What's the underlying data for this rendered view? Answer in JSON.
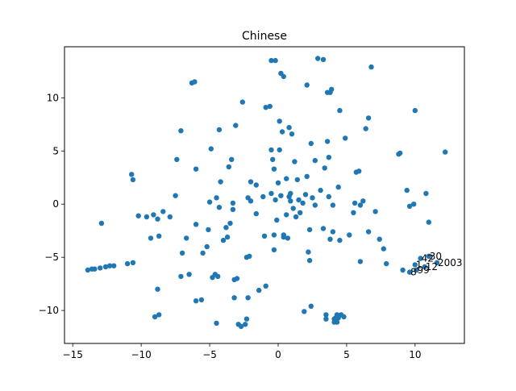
{
  "chart_data": {
    "type": "scatter",
    "title": "Chinese",
    "xlabel": "",
    "ylabel": "",
    "xlim": [
      -15.6,
      13.6
    ],
    "ylim": [
      -13.1,
      14.8
    ],
    "xticks": [
      -15,
      -10,
      -5,
      0,
      5,
      10
    ],
    "yticks": [
      -10,
      -5,
      0,
      5,
      10
    ],
    "xtick_labels": [
      "−15",
      "−10",
      "−5",
      "0",
      "5",
      "10"
    ],
    "ytick_labels": [
      "−10",
      "−5",
      "0",
      "5",
      "10"
    ],
    "grid": false,
    "point_color": "#1f77b4",
    "labelled_points": [
      {
        "x": 11.0,
        "y": -4.9,
        "label": "30"
      },
      {
        "x": 10.4,
        "y": -5.1,
        "label": "42"
      },
      {
        "x": 11.6,
        "y": -5.5,
        "label": "2003"
      },
      {
        "x": 10.0,
        "y": -5.7,
        "label": "1"
      },
      {
        "x": 10.7,
        "y": -5.9,
        "label": "12"
      },
      {
        "x": 10.1,
        "y": -6.2,
        "label": "99"
      },
      {
        "x": 9.6,
        "y": -6.4,
        "label": "8"
      }
    ],
    "points": [
      [
        -13.9,
        -6.2
      ],
      [
        -13.4,
        -6.1
      ],
      [
        -13.0,
        -6.0
      ],
      [
        -12.6,
        -5.9
      ],
      [
        -12.3,
        -5.8
      ],
      [
        -11.0,
        -5.6
      ],
      [
        -10.6,
        -5.5
      ],
      [
        -12.9,
        -1.8
      ],
      [
        -10.6,
        2.3
      ],
      [
        -10.7,
        2.8
      ],
      [
        -9.6,
        -1.2
      ],
      [
        -9.1,
        -1.0
      ],
      [
        -8.8,
        -1.4
      ],
      [
        -8.4,
        -0.7
      ],
      [
        -9.3,
        -3.2
      ],
      [
        -8.7,
        -3.0
      ],
      [
        -8.8,
        -8.0
      ],
      [
        -9.0,
        -10.6
      ],
      [
        -8.7,
        -10.4
      ],
      [
        -7.5,
        0.8
      ],
      [
        -7.4,
        4.2
      ],
      [
        -7.1,
        6.9
      ],
      [
        -7.0,
        -4.6
      ],
      [
        -7.1,
        -6.8
      ],
      [
        -6.7,
        -3.2
      ],
      [
        -6.5,
        -6.6
      ],
      [
        -6.3,
        11.4
      ],
      [
        -6.1,
        11.5
      ],
      [
        -6.0,
        3.3
      ],
      [
        -6.0,
        -1.9
      ],
      [
        -6.0,
        -9.1
      ],
      [
        -5.6,
        -9.0
      ],
      [
        -5.5,
        -4.6
      ],
      [
        -5.2,
        -4.0
      ],
      [
        -5.1,
        -2.4
      ],
      [
        -5.0,
        0.2
      ],
      [
        -4.9,
        5.2
      ],
      [
        -4.8,
        -6.9
      ],
      [
        -4.6,
        -6.6
      ],
      [
        -4.3,
        -0.3
      ],
      [
        -4.5,
        0.6
      ],
      [
        -4.4,
        -6.8
      ],
      [
        -4.5,
        -11.2
      ],
      [
        -4.3,
        7.0
      ],
      [
        -4.2,
        2.1
      ],
      [
        -4.0,
        -3.4
      ],
      [
        -3.8,
        -2.2
      ],
      [
        -3.7,
        -3.1
      ],
      [
        -3.5,
        -1.8
      ],
      [
        -3.3,
        -0.5
      ],
      [
        -3.6,
        3.5
      ],
      [
        -3.4,
        4.2
      ],
      [
        -3.3,
        0.1
      ],
      [
        -3.2,
        -7.1
      ],
      [
        -3.0,
        -7.0
      ],
      [
        -3.2,
        -8.8
      ],
      [
        -3.1,
        7.4
      ],
      [
        -2.9,
        -11.3
      ],
      [
        -2.7,
        -11.5
      ],
      [
        -2.6,
        9.6
      ],
      [
        -2.4,
        -11.3
      ],
      [
        -2.3,
        -10.8
      ],
      [
        -2.3,
        -5.0
      ],
      [
        -2.1,
        -4.9
      ],
      [
        -2.2,
        -8.8
      ],
      [
        -2.2,
        0.6
      ],
      [
        -2.0,
        0.3
      ],
      [
        -1.6,
        1.8
      ],
      [
        -1.6,
        -0.9
      ],
      [
        -1.4,
        -8.1
      ],
      [
        -1.1,
        0.7
      ],
      [
        -1.0,
        -3.0
      ],
      [
        -0.9,
        -7.7
      ],
      [
        -0.9,
        9.1
      ],
      [
        -0.6,
        9.2
      ],
      [
        -0.5,
        5.1
      ],
      [
        -0.4,
        4.2
      ],
      [
        -0.3,
        3.3
      ],
      [
        -0.3,
        -2.9
      ],
      [
        -0.5,
        1.0
      ],
      [
        -0.5,
        13.5
      ],
      [
        -0.2,
        13.5
      ],
      [
        -0.3,
        -4.3
      ],
      [
        -0.2,
        0.4
      ],
      [
        -0.1,
        -1.5
      ],
      [
        0.0,
        2.0
      ],
      [
        0.1,
        7.8
      ],
      [
        0.1,
        5.1
      ],
      [
        0.2,
        0.8
      ],
      [
        0.2,
        12.3
      ],
      [
        0.3,
        6.8
      ],
      [
        0.4,
        12.0
      ],
      [
        0.4,
        -3.1
      ],
      [
        0.4,
        -2.9
      ],
      [
        0.6,
        2.4
      ],
      [
        0.6,
        -1.0
      ],
      [
        0.7,
        -3.2
      ],
      [
        0.8,
        0.7
      ],
      [
        0.8,
        7.2
      ],
      [
        0.9,
        1.0
      ],
      [
        0.9,
        0.3
      ],
      [
        1.0,
        6.6
      ],
      [
        1.1,
        -0.4
      ],
      [
        1.2,
        4.0
      ],
      [
        1.3,
        -1.2
      ],
      [
        1.4,
        2.3
      ],
      [
        1.5,
        0.4
      ],
      [
        1.6,
        -0.8
      ],
      [
        1.8,
        0.1
      ],
      [
        1.9,
        -10.1
      ],
      [
        2.0,
        0.9
      ],
      [
        2.1,
        2.6
      ],
      [
        2.1,
        11.2
      ],
      [
        2.2,
        -4.5
      ],
      [
        2.3,
        -2.4
      ],
      [
        2.3,
        -5.3
      ],
      [
        2.4,
        -9.6
      ],
      [
        2.4,
        5.7
      ],
      [
        2.5,
        0.6
      ],
      [
        2.7,
        -0.1
      ],
      [
        2.7,
        4.1
      ],
      [
        2.9,
        13.7
      ],
      [
        3.1,
        1.3
      ],
      [
        3.3,
        -2.3
      ],
      [
        3.3,
        13.6
      ],
      [
        3.4,
        3.4
      ],
      [
        3.5,
        -10.4
      ],
      [
        3.6,
        5.9
      ],
      [
        3.6,
        10.5
      ],
      [
        3.5,
        -10.8
      ],
      [
        3.7,
        0.7
      ],
      [
        3.7,
        4.4
      ],
      [
        3.8,
        -3.3
      ],
      [
        3.8,
        10.5
      ],
      [
        3.9,
        10.8
      ],
      [
        4.0,
        -0.1
      ],
      [
        4.0,
        -2.6
      ],
      [
        4.1,
        -11.1
      ],
      [
        4.2,
        -10.7
      ],
      [
        4.3,
        -10.4
      ],
      [
        4.4,
        1.6
      ],
      [
        4.4,
        -10.7
      ],
      [
        4.6,
        -10.4
      ],
      [
        4.5,
        -3.4
      ],
      [
        4.5,
        8.8
      ],
      [
        4.8,
        -10.6
      ],
      [
        4.9,
        6.2
      ],
      [
        4.3,
        -11.1
      ],
      [
        4.1,
        -10.8
      ],
      [
        5.2,
        -2.9
      ],
      [
        5.5,
        -0.8
      ],
      [
        5.6,
        0.1
      ],
      [
        5.7,
        3.0
      ],
      [
        5.9,
        3.1
      ],
      [
        6.0,
        -5.4
      ],
      [
        6.0,
        -0.1
      ],
      [
        6.2,
        0.3
      ],
      [
        6.4,
        7.1
      ],
      [
        6.6,
        8.1
      ],
      [
        6.6,
        -2.6
      ],
      [
        6.8,
        12.9
      ],
      [
        7.1,
        -0.7
      ],
      [
        7.4,
        -3.3
      ],
      [
        7.7,
        -4.2
      ],
      [
        7.9,
        -5.6
      ],
      [
        8.8,
        4.7
      ],
      [
        8.9,
        4.8
      ],
      [
        9.1,
        -6.2
      ],
      [
        9.4,
        1.3
      ],
      [
        9.6,
        -0.2
      ],
      [
        9.9,
        0.0
      ],
      [
        10.0,
        8.8
      ],
      [
        10.8,
        1.0
      ],
      [
        11.0,
        -1.7
      ],
      [
        12.2,
        4.9
      ],
      [
        -12.0,
        -5.8
      ],
      [
        -13.6,
        -6.1
      ],
      [
        -7.9,
        -1.2
      ],
      [
        -10.2,
        -1.1
      ],
      [
        -2.0,
        2.1
      ]
    ]
  }
}
